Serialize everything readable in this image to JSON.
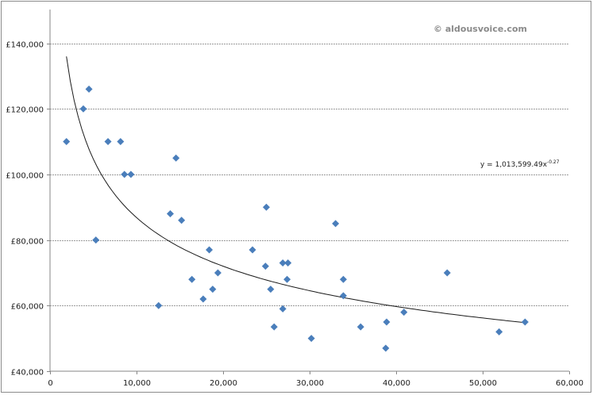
{
  "chart_data": {
    "type": "scatter",
    "title": "",
    "xlabel": "",
    "ylabel": "",
    "xlim": [
      0,
      60000
    ],
    "ylim": [
      40000,
      150000
    ],
    "grid": {
      "horizontal": true,
      "vertical": false,
      "style": "dashed"
    },
    "legend": null,
    "x_ticks": [
      0,
      10000,
      20000,
      30000,
      40000,
      50000,
      60000
    ],
    "x_tick_labels": [
      "0",
      "10,000",
      "20,000",
      "30,000",
      "40,000",
      "50,000",
      "60,000"
    ],
    "y_ticks": [
      40000,
      60000,
      80000,
      100000,
      120000,
      140000
    ],
    "y_tick_labels": [
      "£40,000",
      "£60,000",
      "£80,000",
      "£100,000",
      "£120,000",
      "£140,000"
    ],
    "series": [
      {
        "name": "data",
        "marker": "diamond",
        "color": "#4a7ebb",
        "points": [
          [
            1900,
            110000
          ],
          [
            3850,
            120000
          ],
          [
            4500,
            126000
          ],
          [
            5300,
            80000
          ],
          [
            6700,
            110000
          ],
          [
            8150,
            110000
          ],
          [
            8600,
            100000
          ],
          [
            9350,
            100000
          ],
          [
            12550,
            60000
          ],
          [
            13900,
            88000
          ],
          [
            14560,
            105000
          ],
          [
            15200,
            86000
          ],
          [
            16400,
            68000
          ],
          [
            17700,
            62000
          ],
          [
            18400,
            77000
          ],
          [
            18800,
            65000
          ],
          [
            19400,
            70000
          ],
          [
            23400,
            77000
          ],
          [
            24900,
            72000
          ],
          [
            25000,
            90000
          ],
          [
            25500,
            65000
          ],
          [
            25900,
            53500
          ],
          [
            26900,
            73000
          ],
          [
            26900,
            59000
          ],
          [
            27400,
            68000
          ],
          [
            27500,
            73000
          ],
          [
            30200,
            50000
          ],
          [
            33000,
            85000
          ],
          [
            33900,
            68000
          ],
          [
            33900,
            63000
          ],
          [
            35900,
            53500
          ],
          [
            38800,
            47000
          ],
          [
            38900,
            55000
          ],
          [
            40900,
            58000
          ],
          [
            45900,
            70000
          ],
          [
            51900,
            52000
          ],
          [
            54900,
            55000
          ]
        ]
      }
    ],
    "trendline": {
      "type": "power",
      "a": 1013599.49,
      "b": -0.27,
      "x_range": [
        1900,
        54900
      ],
      "color": "#1a1a1a",
      "equation_label": "y = 1,013,599.49x",
      "equation_exponent": "-0.27"
    },
    "annotations": [
      {
        "text": "© aldousvoice.com"
      }
    ]
  },
  "watermark": "© aldousvoice.com",
  "equation": {
    "base": "y = 1,013,599.49x",
    "exponent": "-0.27"
  }
}
